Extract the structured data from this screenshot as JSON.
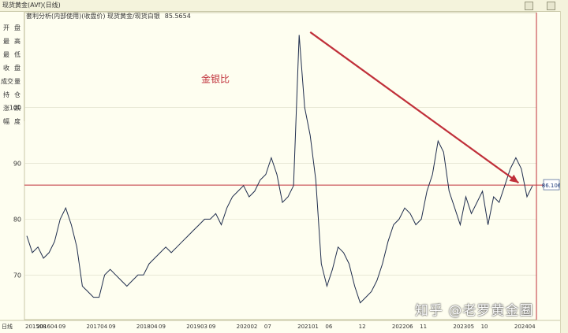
{
  "window": {
    "title": "现货黄金(AVf)(日线)"
  },
  "side_panel": [
    {
      "a": "开",
      "b": "盘"
    },
    {
      "a": "最",
      "b": "高"
    },
    {
      "a": "最",
      "b": "低"
    },
    {
      "a": "收",
      "b": "盘"
    },
    {
      "a": "成交",
      "b": "量"
    },
    {
      "a": "持",
      "b": "仓"
    },
    {
      "a": "涨",
      "b": "跌"
    },
    {
      "a": "幅",
      "b": "度"
    }
  ],
  "indicator": {
    "label": "套利分析(内部使用)(收盘价) 现货黄金/现货白银",
    "value": "85.5654"
  },
  "watermark": "知乎 @老罗黄金圈",
  "colors": {
    "line": "#1f2d4d",
    "grid": "#dcdcc8",
    "hline": "#c0303a",
    "arrow": "#c0303a",
    "label": "#c0303a",
    "background": "#fefef0"
  },
  "chart_data": {
    "type": "line",
    "annotation": "金银比",
    "current_value_label": "86.106",
    "horizontal_line_value": 86.1,
    "ylim": [
      62,
      117
    ],
    "y_ticks": [
      70,
      80,
      90,
      100
    ],
    "x_labels": [
      "日线",
      "201508",
      "201604",
      "09",
      "201704",
      "09",
      "201804",
      "09",
      "201903",
      "09",
      "202002",
      "07",
      "202101",
      "06",
      "12",
      "202206",
      "11",
      "202305",
      "10",
      "202404"
    ],
    "x_label_index": [
      null,
      0,
      2,
      6,
      11,
      15,
      20,
      24,
      29,
      33,
      38,
      43,
      49,
      54,
      60,
      66,
      71,
      77,
      82,
      88
    ],
    "series": [
      {
        "x_start": "2015-08",
        "step": "month",
        "values": [
          77,
          74,
          75,
          73,
          74,
          76,
          80,
          82,
          79,
          75,
          68,
          67,
          66,
          66,
          70,
          71,
          70,
          69,
          68,
          69,
          70,
          70,
          72,
          73,
          74,
          75,
          74,
          75,
          76,
          77,
          78,
          79,
          80,
          80,
          81,
          79,
          82,
          84,
          85,
          86,
          84,
          85,
          87,
          88,
          91,
          88,
          83,
          84,
          86,
          113,
          100,
          95,
          87,
          72,
          68,
          71,
          75,
          74,
          72,
          68,
          65,
          66,
          67,
          69,
          72,
          76,
          79,
          80,
          82,
          81,
          79,
          80,
          85,
          88,
          94,
          92,
          85,
          82,
          79,
          84,
          81,
          83,
          85,
          79,
          84,
          83,
          86,
          89,
          91,
          89,
          84,
          86
        ]
      }
    ],
    "arrow": {
      "from": {
        "x_index": 51,
        "value": 113.5
      },
      "to": {
        "x_index": 88.5,
        "value": 86.5
      }
    }
  }
}
